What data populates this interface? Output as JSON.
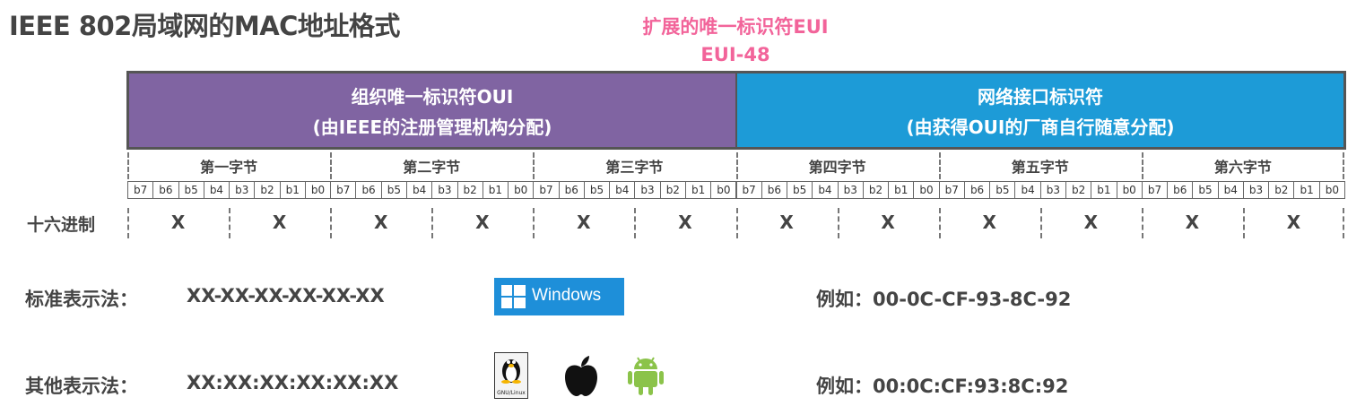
{
  "title": "IEEE 802局域网的MAC地址格式",
  "eui": {
    "line1": "扩展的唯一标识符EUI",
    "line2": "EUI-48"
  },
  "oui": {
    "line1": "组织唯一标识符OUI",
    "line2": "(由IEEE的注册管理机构分配)"
  },
  "nic": {
    "line1": "网络接口标识符",
    "line2": "(由获得OUI的厂商自行随意分配)"
  },
  "bytes": [
    "第一字节",
    "第二字节",
    "第三字节",
    "第四字节",
    "第五字节",
    "第六字节"
  ],
  "bits": [
    "b7",
    "b6",
    "b5",
    "b4",
    "b3",
    "b2",
    "b1",
    "b0"
  ],
  "hex_label": "十六进制",
  "hex_symbol": "X",
  "standard": {
    "label": "标准表示法：",
    "format": "XX-XX-XX-XX-XX-XX",
    "example": "例如：00-0C-CF-93-8C-92"
  },
  "other": {
    "label": "其他表示法：",
    "format": "XX:XX:XX:XX:XX:XX",
    "example": "例如：00:0C:CF:93:8C:92"
  },
  "windows_label": "Windows",
  "linux_caption": "GNU/Linux",
  "colors": {
    "oui": "#8064a2",
    "nic": "#1d9bd7",
    "eui": "#f2649a",
    "windows": "#1e8fd9",
    "android": "#8bc34a"
  }
}
